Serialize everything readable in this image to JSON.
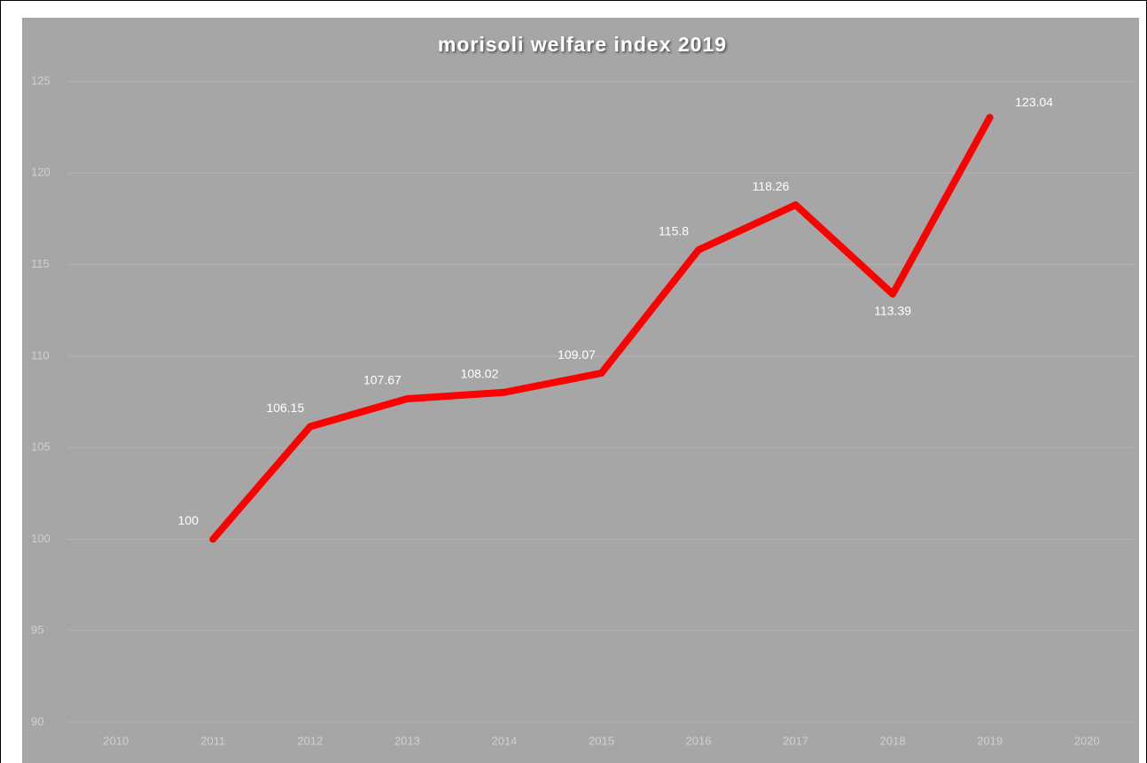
{
  "chart_data": {
    "type": "line",
    "title": "morisoli welfare index 2019",
    "categories": [
      "2010",
      "2011",
      "2012",
      "2013",
      "2014",
      "2015",
      "2016",
      "2017",
      "2018",
      "2019",
      "2020"
    ],
    "series": [
      {
        "color": "#ff0000",
        "values": [
          null,
          100,
          106.15,
          107.67,
          108.02,
          109.07,
          115.8,
          118.26,
          113.39,
          123.04,
          null
        ]
      }
    ],
    "ylim": [
      90,
      125
    ],
    "yticks": [
      90,
      95,
      100,
      105,
      110,
      115,
      120,
      125
    ],
    "grid": true
  }
}
